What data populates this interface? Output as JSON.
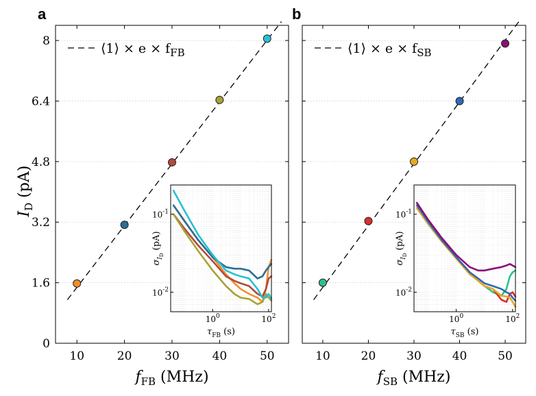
{
  "chart_data": [
    {
      "panel": "a",
      "type": "scatter",
      "xlabel": "f",
      "xlabel_sub": "FB",
      "xlabel_unit": "(MHz)",
      "ylabel": "I",
      "ylabel_sub": "D",
      "ylabel_unit": "(pA)",
      "xlim": [
        5.5,
        54.5
      ],
      "ylim": [
        0,
        8.4
      ],
      "xticks": [
        10,
        20,
        30,
        40,
        50
      ],
      "yticks": [
        0,
        1.6,
        3.2,
        4.8,
        6.4,
        8
      ],
      "ytick_labels": [
        "0",
        "1.6",
        "3.2",
        "4.8",
        "6.4",
        "8"
      ],
      "grid": "horizontal dotted",
      "legend": {
        "position": "top-left",
        "label_prefix": "⟨1⟩ × e × f",
        "label_sub": "FB"
      },
      "fit_line": {
        "style": "dashed",
        "x": [
          8,
          53
        ],
        "y": [
          1.15,
          8.5
        ]
      },
      "points": [
        {
          "x": 10,
          "y": 1.58,
          "color": "#f28e2b"
        },
        {
          "x": 20,
          "y": 3.13,
          "color": "#2b6f96"
        },
        {
          "x": 30,
          "y": 4.78,
          "color": "#b04a3c"
        },
        {
          "x": 40,
          "y": 6.43,
          "color": "#a9a234"
        },
        {
          "x": 50,
          "y": 8.05,
          "color": "#27c0d6"
        }
      ],
      "inset": {
        "type": "line",
        "xscale": "log",
        "yscale": "log",
        "xlabel": "τ",
        "xlabel_sub": "FB",
        "xlabel_unit": "(s)",
        "ylabel": "σ",
        "ylabel_sub": "I",
        "ylabel_subsub": "D",
        "ylabel_unit": "(pA)",
        "xlim": [
          0.0316,
          125.9
        ],
        "ylim": [
          0.00562,
          0.237
        ],
        "xtick_labels": [
          {
            "base": "10",
            "exp": "0",
            "value": 1
          },
          {
            "base": "10",
            "exp": "2",
            "value": 100
          }
        ],
        "ytick_labels": [
          {
            "base": "10",
            "exp": "-2",
            "value": 0.01
          },
          {
            "base": "10",
            "exp": "-1",
            "value": 0.1
          }
        ],
        "series": [
          {
            "color": "#f28e2b",
            "tau": [
              0.04,
              0.1,
              0.3,
              1,
              3,
              6,
              10,
              20,
              40,
              60,
              80,
              100,
              125
            ],
            "sigma": [
              0.13,
              0.082,
              0.047,
              0.028,
              0.017,
              0.013,
              0.011,
              0.0095,
              0.0085,
              0.0075,
              0.011,
              0.021,
              0.026
            ]
          },
          {
            "color": "#2b6f96",
            "tau": [
              0.04,
              0.1,
              0.3,
              1,
              3,
              6,
              10,
              20,
              40,
              60,
              80,
              100,
              125
            ],
            "sigma": [
              0.13,
              0.081,
              0.047,
              0.028,
              0.021,
              0.02,
              0.02,
              0.019,
              0.015,
              0.016,
              0.019,
              0.021,
              0.023
            ]
          },
          {
            "color": "#b04a3c",
            "tau": [
              0.04,
              0.1,
              0.3,
              1,
              3,
              6,
              10,
              20,
              40,
              60,
              80,
              100,
              125
            ],
            "sigma": [
              0.1,
              0.065,
              0.04,
              0.025,
              0.016,
              0.014,
              0.013,
              0.012,
              0.0095,
              0.0088,
              0.011,
              0.015,
              0.016
            ]
          },
          {
            "color": "#a9a234",
            "tau": [
              0.04,
              0.1,
              0.3,
              1,
              3,
              6,
              10,
              20,
              40,
              60,
              80,
              100,
              125
            ],
            "sigma": [
              0.1,
              0.06,
              0.034,
              0.019,
              0.012,
              0.0095,
              0.0085,
              0.0082,
              0.007,
              0.0075,
              0.0095,
              0.0085,
              0.0078
            ]
          },
          {
            "color": "#27c0d6",
            "tau": [
              0.04,
              0.1,
              0.3,
              1,
              3,
              6,
              10,
              20,
              40,
              60,
              80,
              100,
              125
            ],
            "sigma": [
              0.2,
              0.11,
              0.055,
              0.03,
              0.019,
              0.017,
              0.016,
              0.015,
              0.011,
              0.0085,
              0.0085,
              0.0095,
              0.0083
            ]
          }
        ]
      }
    },
    {
      "panel": "b",
      "type": "scatter",
      "xlabel": "f",
      "xlabel_sub": "SB",
      "xlabel_unit": "(MHz)",
      "ylabel": "",
      "xlim": [
        5.5,
        54.5
      ],
      "ylim": [
        0,
        8.4
      ],
      "xticks": [
        10,
        20,
        30,
        40,
        50
      ],
      "yticks": [
        0,
        1.6,
        3.2,
        4.8,
        6.4,
        8
      ],
      "grid": "horizontal dotted",
      "legend": {
        "position": "top-left",
        "label_prefix": "⟨1⟩ × e × f",
        "label_sub": "SB"
      },
      "fit_line": {
        "style": "dashed",
        "x": [
          8,
          53
        ],
        "y": [
          1.15,
          8.5
        ]
      },
      "points": [
        {
          "x": 10,
          "y": 1.6,
          "color": "#2ec08a"
        },
        {
          "x": 20,
          "y": 3.23,
          "color": "#d93030"
        },
        {
          "x": 30,
          "y": 4.8,
          "color": "#e8a923"
        },
        {
          "x": 40,
          "y": 6.4,
          "color": "#2d69b8"
        },
        {
          "x": 50,
          "y": 7.92,
          "color": "#8b0f79"
        }
      ],
      "inset": {
        "type": "line",
        "xscale": "log",
        "yscale": "log",
        "xlabel": "τ",
        "xlabel_sub": "SB",
        "xlabel_unit": "(s)",
        "ylabel": "σ",
        "ylabel_sub": "I",
        "ylabel_subsub": "D",
        "ylabel_unit": "(pA)",
        "xlim": [
          0.0316,
          125.9
        ],
        "ylim": [
          0.00562,
          0.237
        ],
        "xtick_labels": [
          {
            "base": "10",
            "exp": "0",
            "value": 1
          },
          {
            "base": "10",
            "exp": "2",
            "value": 100
          }
        ],
        "ytick_labels": [
          {
            "base": "10",
            "exp": "-2",
            "value": 0.01
          },
          {
            "base": "10",
            "exp": "-1",
            "value": 0.1
          }
        ],
        "series": [
          {
            "color": "#2ec08a",
            "tau": [
              0.04,
              0.1,
              0.3,
              1,
              3,
              6,
              10,
              20,
              40,
              60,
              80,
              100,
              125
            ],
            "sigma": [
              0.12,
              0.075,
              0.045,
              0.028,
              0.018,
              0.014,
              0.012,
              0.01,
              0.009,
              0.011,
              0.016,
              0.018,
              0.019
            ]
          },
          {
            "color": "#d93030",
            "tau": [
              0.04,
              0.1,
              0.3,
              1,
              3,
              6,
              10,
              20,
              40,
              60,
              80,
              100,
              125
            ],
            "sigma": [
              0.13,
              0.08,
              0.047,
              0.028,
              0.018,
              0.014,
              0.012,
              0.011,
              0.008,
              0.0075,
              0.0095,
              0.01,
              0.0088
            ]
          },
          {
            "color": "#e8a923",
            "tau": [
              0.04,
              0.1,
              0.3,
              1,
              3,
              6,
              10,
              20,
              40,
              60,
              80,
              100,
              125
            ],
            "sigma": [
              0.12,
              0.076,
              0.045,
              0.027,
              0.017,
              0.014,
              0.012,
              0.011,
              0.009,
              0.0088,
              0.0085,
              0.0075,
              0.0065
            ]
          },
          {
            "color": "#2d69b8",
            "tau": [
              0.04,
              0.1,
              0.3,
              1,
              3,
              6,
              10,
              20,
              40,
              60,
              80,
              100,
              125
            ],
            "sigma": [
              0.13,
              0.08,
              0.047,
              0.028,
              0.018,
              0.015,
              0.013,
              0.012,
              0.011,
              0.01,
              0.0095,
              0.0085,
              0.0078
            ]
          },
          {
            "color": "#8b0f79",
            "tau": [
              0.04,
              0.1,
              0.3,
              1,
              3,
              6,
              10,
              20,
              40,
              60,
              80,
              100,
              125
            ],
            "sigma": [
              0.14,
              0.085,
              0.05,
              0.03,
              0.021,
              0.019,
              0.019,
              0.02,
              0.021,
              0.022,
              0.023,
              0.022,
              0.021
            ]
          }
        ]
      }
    }
  ]
}
